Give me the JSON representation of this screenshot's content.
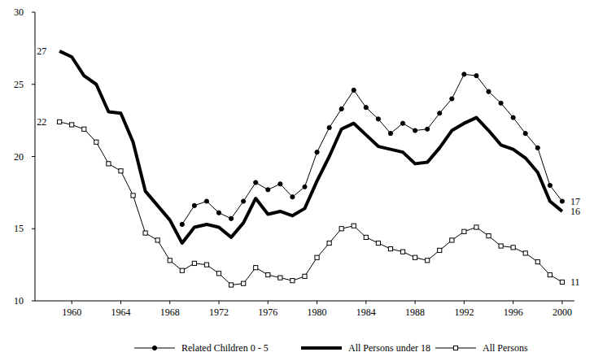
{
  "chart_data": {
    "type": "line",
    "x": [
      1959,
      1960,
      1961,
      1962,
      1963,
      1964,
      1965,
      1966,
      1967,
      1968,
      1969,
      1970,
      1971,
      1972,
      1973,
      1974,
      1975,
      1976,
      1977,
      1978,
      1979,
      1980,
      1981,
      1982,
      1983,
      1984,
      1985,
      1986,
      1987,
      1988,
      1989,
      1990,
      1991,
      1992,
      1993,
      1994,
      1995,
      1996,
      1997,
      1998,
      1999,
      2000
    ],
    "series": [
      {
        "name": "Related Children 0 - 5",
        "color": "#000000",
        "marker": "circle",
        "line_style": "solid",
        "values": [
          null,
          null,
          null,
          null,
          null,
          null,
          null,
          null,
          null,
          null,
          15.3,
          16.6,
          16.9,
          16.1,
          15.7,
          16.9,
          18.2,
          17.7,
          18.1,
          17.2,
          17.9,
          20.3,
          22.0,
          23.3,
          24.6,
          23.4,
          22.6,
          21.6,
          22.3,
          21.8,
          21.9,
          23.0,
          24.0,
          25.7,
          25.6,
          24.5,
          23.7,
          22.7,
          21.6,
          20.6,
          18.0,
          16.9
        ],
        "value_labels": [
          null,
          null,
          null,
          null,
          null,
          null,
          null,
          null,
          null,
          null,
          null,
          null,
          null,
          null,
          null,
          null,
          null,
          null,
          null,
          null,
          null,
          null,
          null,
          null,
          null,
          null,
          null,
          null,
          null,
          null,
          null,
          null,
          null,
          null,
          null,
          null,
          null,
          null,
          null,
          null,
          null,
          "17"
        ]
      },
      {
        "name": "All Persons under 18",
        "color": "#000000",
        "marker": "none",
        "line_style": "bold",
        "values": [
          27.3,
          26.9,
          25.6,
          25.0,
          23.1,
          23.0,
          21.0,
          17.6,
          16.6,
          15.6,
          14.0,
          15.1,
          15.3,
          15.1,
          14.4,
          15.4,
          17.1,
          16.0,
          16.2,
          15.9,
          16.4,
          18.3,
          20.0,
          21.9,
          22.3,
          21.5,
          20.7,
          20.5,
          20.3,
          19.5,
          19.6,
          20.6,
          21.8,
          22.3,
          22.7,
          21.8,
          20.8,
          20.5,
          19.9,
          18.9,
          16.9,
          16.2
        ],
        "value_labels": [
          "27",
          null,
          null,
          null,
          null,
          null,
          null,
          null,
          null,
          null,
          null,
          null,
          null,
          null,
          null,
          null,
          null,
          null,
          null,
          null,
          null,
          null,
          null,
          null,
          null,
          null,
          null,
          null,
          null,
          null,
          null,
          null,
          null,
          null,
          null,
          null,
          null,
          null,
          null,
          null,
          null,
          "16"
        ]
      },
      {
        "name": "All Persons",
        "color": "#000000",
        "marker": "hollow-square",
        "line_style": "solid",
        "values": [
          22.4,
          22.2,
          21.9,
          21.0,
          19.5,
          19.0,
          17.3,
          14.7,
          14.2,
          12.8,
          12.1,
          12.6,
          12.5,
          11.9,
          11.1,
          11.2,
          12.3,
          11.8,
          11.6,
          11.4,
          11.7,
          13.0,
          14.0,
          15.0,
          15.2,
          14.4,
          14.0,
          13.6,
          13.4,
          13.0,
          12.8,
          13.5,
          14.2,
          14.8,
          15.1,
          14.5,
          13.8,
          13.7,
          13.3,
          12.7,
          11.8,
          11.3
        ],
        "value_labels": [
          "22",
          null,
          null,
          null,
          null,
          null,
          null,
          null,
          null,
          null,
          null,
          null,
          null,
          null,
          null,
          null,
          null,
          null,
          null,
          null,
          null,
          null,
          null,
          null,
          null,
          null,
          null,
          null,
          null,
          null,
          null,
          null,
          null,
          null,
          null,
          null,
          null,
          null,
          null,
          null,
          null,
          "11"
        ]
      }
    ],
    "xlim": [
      1957,
      2001
    ],
    "xticks": [
      1960,
      1964,
      1968,
      1972,
      1976,
      1980,
      1984,
      1988,
      1992,
      1996,
      2000
    ],
    "ylim": [
      10,
      30
    ],
    "yticks": [
      10,
      15,
      20,
      25,
      30
    ],
    "grid": false,
    "legend": "bottom"
  }
}
